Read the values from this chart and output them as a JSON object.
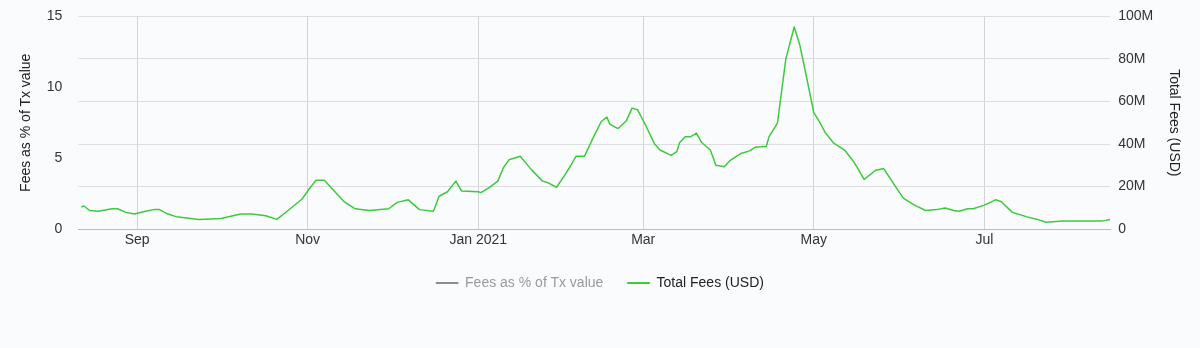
{
  "chart_data": {
    "type": "line",
    "ylabel": "Fees as % of Tx value",
    "y2label": "Total Fees (USD)",
    "x": [
      "2020-08-12",
      "2020-08-13",
      "2020-08-15",
      "2020-08-18",
      "2020-08-23",
      "2020-08-25",
      "2020-08-28",
      "2020-08-31",
      "2020-09-04",
      "2020-09-07",
      "2020-09-09",
      "2020-09-12",
      "2020-09-15",
      "2020-09-18",
      "2020-09-23",
      "2020-10-01",
      "2020-10-08",
      "2020-10-12",
      "2020-10-17",
      "2020-10-21",
      "2020-10-25",
      "2020-10-30",
      "2020-11-02",
      "2020-11-04",
      "2020-11-07",
      "2020-11-09",
      "2020-11-14",
      "2020-11-18",
      "2020-11-23",
      "2020-11-30",
      "2020-12-03",
      "2020-12-07",
      "2020-12-11",
      "2020-12-16",
      "2020-12-18",
      "2020-12-21",
      "2020-12-24",
      "2020-12-26",
      "2021-01-01",
      "2021-01-02",
      "2021-01-05",
      "2021-01-08",
      "2021-01-10",
      "2021-01-12",
      "2021-01-16",
      "2021-01-20",
      "2021-01-24",
      "2021-01-26",
      "2021-01-29",
      "2021-02-01",
      "2021-02-03",
      "2021-02-05",
      "2021-02-08",
      "2021-02-11",
      "2021-02-14",
      "2021-02-16",
      "2021-02-17",
      "2021-02-20",
      "2021-02-23",
      "2021-02-25",
      "2021-02-27",
      "2021-03-02",
      "2021-03-05",
      "2021-03-07",
      "2021-03-11",
      "2021-03-13",
      "2021-03-14",
      "2021-03-16",
      "2021-03-18",
      "2021-03-20",
      "2021-03-22",
      "2021-03-25",
      "2021-03-27",
      "2021-03-30",
      "2021-04-01",
      "2021-04-05",
      "2021-04-08",
      "2021-04-10",
      "2021-04-14",
      "2021-04-15",
      "2021-04-18",
      "2021-04-21",
      "2021-04-24",
      "2021-04-26",
      "2021-04-28",
      "2021-05-01",
      "2021-05-03",
      "2021-05-05",
      "2021-05-08",
      "2021-05-12",
      "2021-05-15",
      "2021-05-17",
      "2021-05-19",
      "2021-05-23",
      "2021-05-26",
      "2021-05-30",
      "2021-06-02",
      "2021-06-06",
      "2021-06-10",
      "2021-06-14",
      "2021-06-17",
      "2021-06-20",
      "2021-06-22",
      "2021-06-25",
      "2021-06-27",
      "2021-07-01",
      "2021-07-05",
      "2021-07-07",
      "2021-07-11",
      "2021-07-16",
      "2021-07-20",
      "2021-07-23",
      "2021-07-29",
      "2021-08-03",
      "2021-08-06",
      "2021-08-12",
      "2021-08-15"
    ],
    "series": [
      {
        "name": "Fees as % of Tx value",
        "color": "#8c8c8c",
        "axis": "y",
        "values": [
          null,
          null,
          null,
          null,
          null,
          null,
          null,
          null,
          null,
          null,
          null,
          null,
          null,
          null,
          null,
          null,
          null,
          null,
          null,
          null,
          null,
          null,
          null,
          null,
          null,
          null,
          null,
          null,
          null,
          null,
          null,
          null,
          null,
          null,
          null,
          null,
          null,
          null,
          null,
          null,
          null,
          null,
          null,
          null,
          null,
          null,
          null,
          null,
          null,
          null,
          null,
          null,
          null,
          null,
          null,
          null,
          null,
          null,
          null,
          null,
          null,
          null,
          null,
          null,
          null,
          null,
          null,
          null,
          null,
          null,
          null,
          null,
          null,
          null,
          null,
          null,
          null,
          null,
          null,
          null,
          null,
          null,
          null,
          null,
          null,
          null,
          null,
          null,
          null,
          null,
          null,
          null,
          null,
          null,
          null,
          null,
          null,
          null,
          null,
          null,
          null,
          null,
          null,
          null,
          null,
          null,
          null,
          null,
          null,
          null,
          null,
          null,
          null,
          null,
          null,
          null,
          null
        ]
      },
      {
        "name": "Total Fees (USD)",
        "color": "#3ec93e",
        "axis": "y2",
        "values": [
          10.5,
          10.9,
          8.8,
          8.4,
          9.6,
          9.6,
          7.9,
          7.1,
          8.4,
          9.2,
          9.2,
          7.1,
          5.9,
          5.4,
          4.6,
          5.0,
          7.1,
          7.1,
          6.3,
          4.6,
          8.8,
          14.2,
          19.7,
          23,
          23,
          20.1,
          13,
          9.6,
          8.8,
          9.6,
          12.6,
          13.8,
          9.2,
          8.4,
          15.5,
          17.6,
          22.6,
          18,
          17.6,
          17.2,
          19.7,
          22.6,
          28.9,
          32.6,
          34.3,
          28,
          22.6,
          21.8,
          19.7,
          25.5,
          29.7,
          34.3,
          34.3,
          42.7,
          50.6,
          52.7,
          49.4,
          47.3,
          51,
          56.9,
          56.1,
          48.5,
          40.2,
          37.2,
          34.7,
          36.4,
          40.6,
          43.5,
          43.5,
          45.2,
          40.6,
          37.2,
          30.1,
          29.3,
          32.2,
          35.6,
          36.8,
          38.5,
          38.9,
          43.5,
          49.8,
          79.9,
          95,
          86.6,
          74.1,
          54.8,
          50.6,
          45.6,
          40.6,
          37.2,
          32.2,
          28,
          23.4,
          27.6,
          28.5,
          20.5,
          14.6,
          11.3,
          8.8,
          9.2,
          10,
          8.8,
          8.4,
          9.6,
          9.6,
          11.3,
          13.8,
          13,
          7.9,
          5.9,
          4.6,
          3.3,
          3.8,
          3.8,
          3.8,
          3.8,
          4.6
        ]
      }
    ],
    "xlim": [
      "2020-08-11",
      "2021-08-15"
    ],
    "xticks": [
      {
        "value": "2020-09-01",
        "label": "Sep"
      },
      {
        "value": "2020-11-01",
        "label": "Nov"
      },
      {
        "value": "2021-01-01",
        "label": "Jan 2021"
      },
      {
        "value": "2021-03-01",
        "label": "Mar"
      },
      {
        "value": "2021-05-01",
        "label": "May"
      },
      {
        "value": "2021-07-01",
        "label": "Jul"
      }
    ],
    "ylim": [
      0,
      15
    ],
    "yticks": [
      0,
      5,
      10,
      15
    ],
    "y2lim": [
      0,
      100
    ],
    "y2ticks": [
      0,
      {
        "value": 20,
        "label": "20M"
      },
      {
        "value": 40,
        "label": "40M"
      },
      {
        "value": 60,
        "label": "60M"
      },
      {
        "value": 80,
        "label": "80M"
      },
      {
        "value": 100,
        "label": "100M"
      }
    ],
    "grid": true,
    "legend": "bottom",
    "marker": "none",
    "line_style": "solid"
  }
}
